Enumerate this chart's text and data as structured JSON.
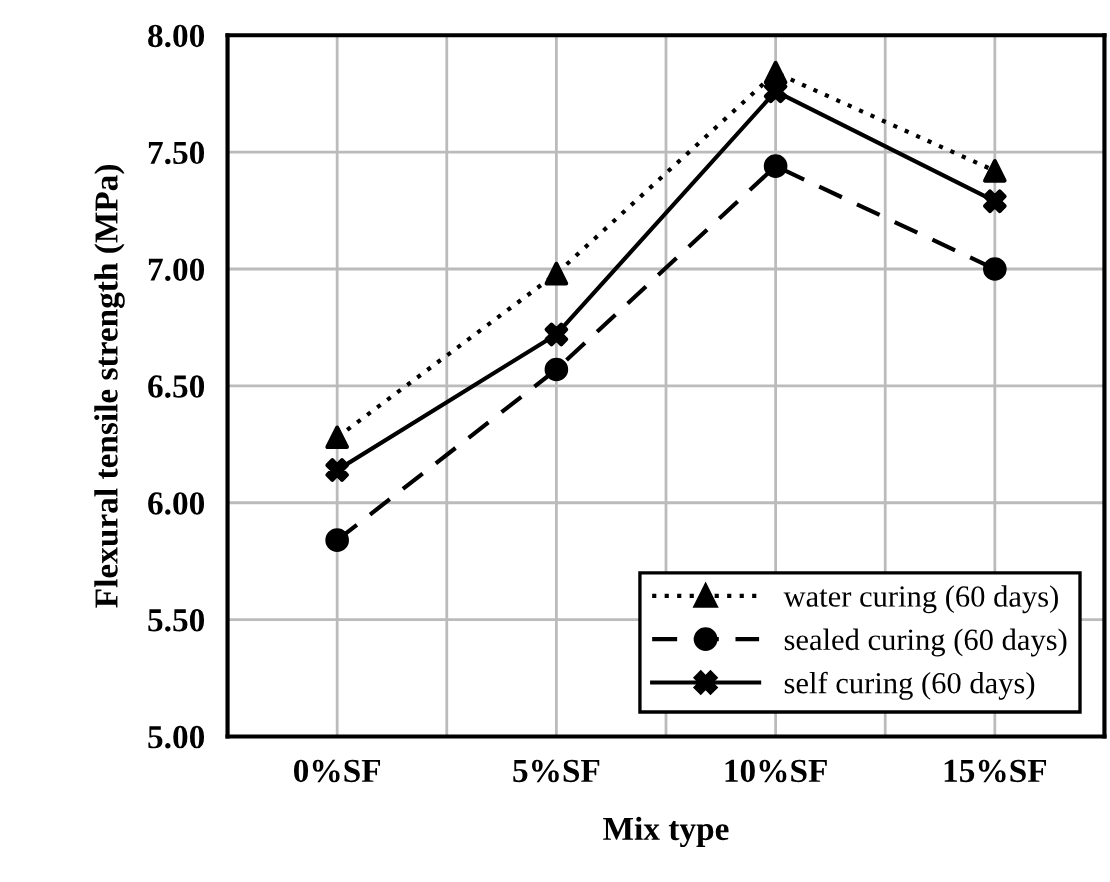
{
  "chart_data": {
    "type": "line",
    "xlabel": "Mix type",
    "ylabel": "Flexural tensile strength (MPa)",
    "categories": [
      "0%SF",
      "5%SF",
      "10%SF",
      "15%SF"
    ],
    "series": [
      {
        "name": "water curing (60 days)",
        "color": "#000000",
        "marker": "triangle",
        "line_style": "dotted",
        "values": [
          6.28,
          6.98,
          7.84,
          7.42
        ]
      },
      {
        "name": "sealed curing (60 days)",
        "color": "#000000",
        "marker": "circle",
        "line_style": "dashed",
        "values": [
          5.84,
          6.57,
          7.44,
          7.0
        ]
      },
      {
        "name": "self curing (60 days)",
        "color": "#000000",
        "marker": "cross",
        "line_style": "solid",
        "values": [
          6.14,
          6.72,
          7.76,
          7.29
        ]
      }
    ],
    "ylim": [
      5.0,
      8.0
    ],
    "yticks": [
      {
        "value": 5.0,
        "label": "5.00"
      },
      {
        "value": 5.5,
        "label": "5.50"
      },
      {
        "value": 6.0,
        "label": "6.00"
      },
      {
        "value": 6.5,
        "label": "6.50"
      },
      {
        "value": 7.0,
        "label": "7.00"
      },
      {
        "value": 7.5,
        "label": "7.50"
      },
      {
        "value": 8.0,
        "label": "8.00"
      }
    ],
    "grid": true,
    "legend": "bottom right"
  }
}
